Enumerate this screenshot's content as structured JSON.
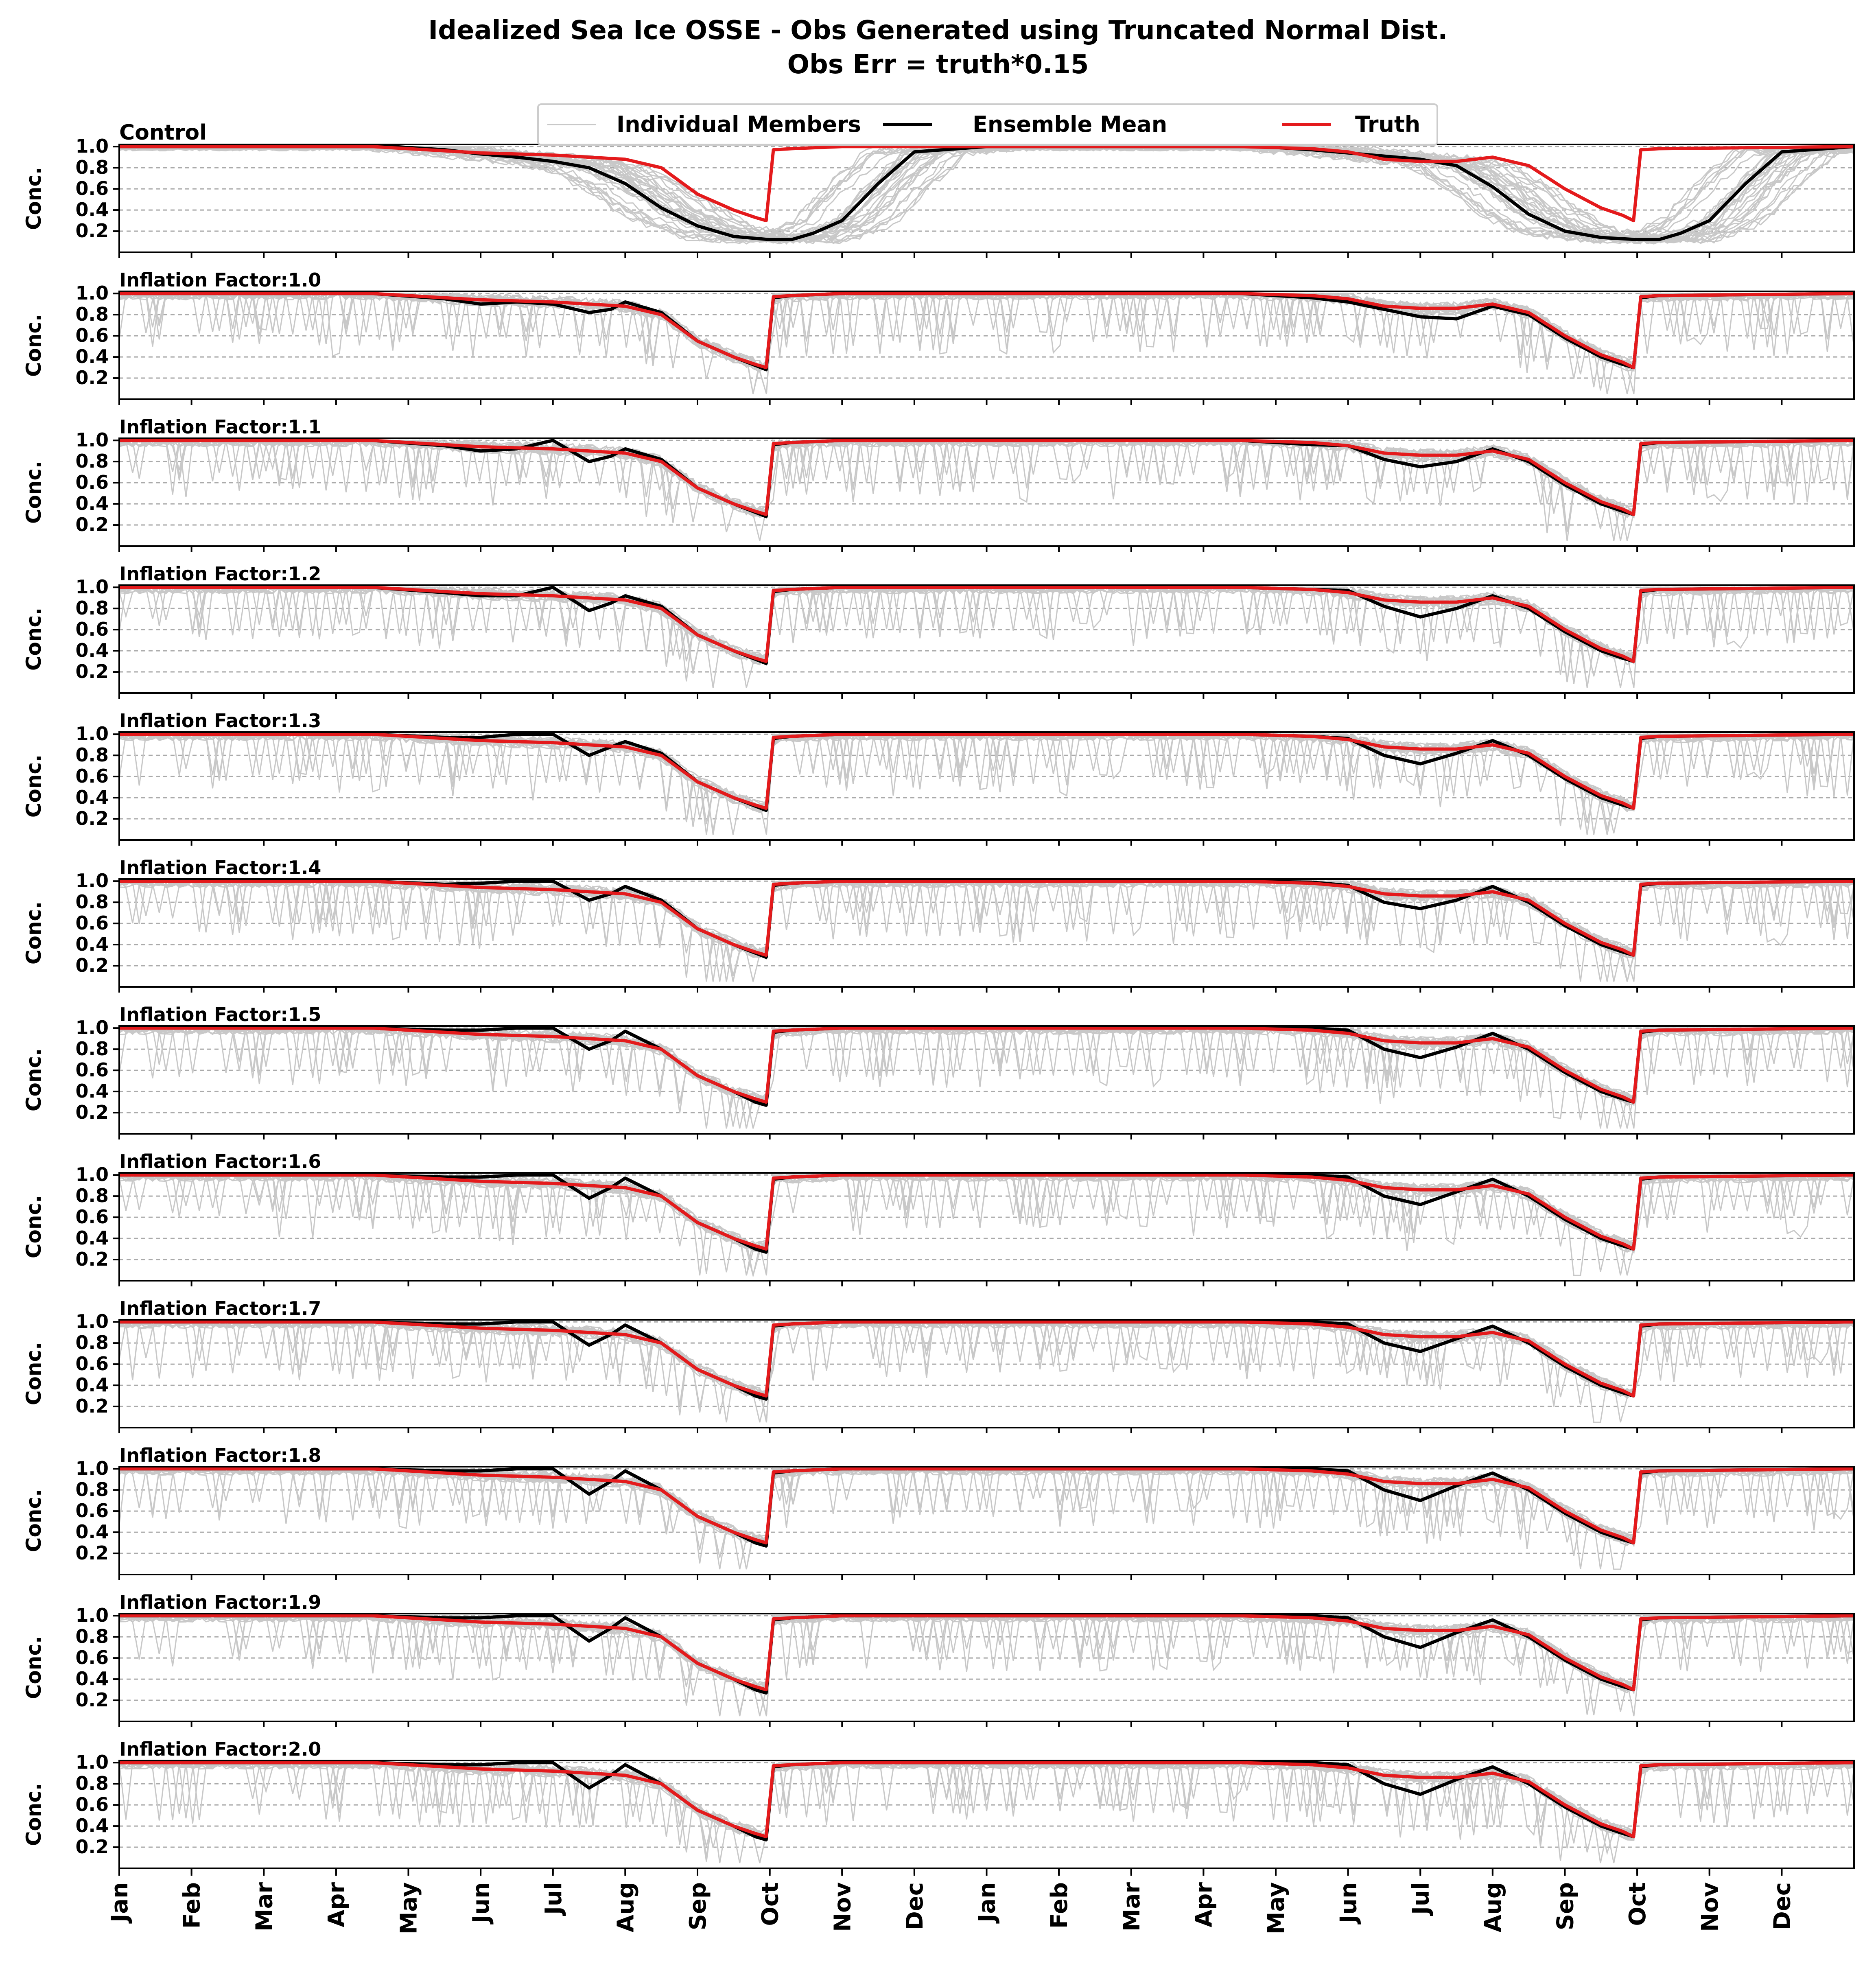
{
  "title_line1": "Idealized Sea Ice OSSE - Obs Generated using Truncated Normal Dist.",
  "title_line2": "Obs Err = truth*0.15",
  "legend": [
    {
      "label": "Individual Members",
      "color": "#c8c8c8"
    },
    {
      "label": "Ensemble Mean",
      "color": "#000000"
    },
    {
      "label": "Truth",
      "color": "#e41a1c"
    }
  ],
  "colors": {
    "members": "#c8c8c8",
    "mean": "#000000",
    "truth": "#e41a1c",
    "grid": "#aaaaaa"
  },
  "chart_data": {
    "type": "line",
    "ylabel": "Conc.",
    "ylim": [
      0,
      1.02
    ],
    "yticks": [
      0.2,
      0.4,
      0.6,
      0.8,
      1.0
    ],
    "ytick_labels": [
      "0.2",
      "0.4",
      "0.6",
      "0.8",
      "1.0"
    ],
    "grid": "horizontal dashed",
    "legend_position": "top-center",
    "x_range_months": [
      0,
      24
    ],
    "month_labels": [
      "Jan",
      "Feb",
      "Mar",
      "Apr",
      "May",
      "Jun",
      "Jul",
      "Aug",
      "Sep",
      "Oct",
      "Nov",
      "Dec",
      "Jan",
      "Feb",
      "Mar",
      "Apr",
      "May",
      "Jun",
      "Jul",
      "Aug",
      "Sep",
      "Oct",
      "Nov",
      "Dec"
    ],
    "truth": {
      "x": [
        0,
        3.5,
        4.5,
        5.0,
        5.5,
        6.0,
        6.5,
        7.0,
        7.5,
        8.0,
        8.5,
        8.8,
        8.95,
        9.05,
        9.3,
        10,
        12,
        15.5,
        16.5,
        17.0,
        17.5,
        18.0,
        18.5,
        19.0,
        19.5,
        20.0,
        20.5,
        20.8,
        20.95,
        21.05,
        21.3,
        24
      ],
      "y": [
        1.0,
        1.0,
        0.96,
        0.94,
        0.93,
        0.92,
        0.9,
        0.88,
        0.8,
        0.55,
        0.4,
        0.33,
        0.3,
        0.97,
        0.98,
        1.0,
        1.0,
        1.0,
        0.98,
        0.95,
        0.88,
        0.86,
        0.86,
        0.9,
        0.82,
        0.6,
        0.42,
        0.35,
        0.3,
        0.97,
        0.98,
        1.0
      ]
    },
    "panels": [
      {
        "label": "Control",
        "mean": {
          "x": [
            0,
            3.8,
            4.5,
            5.0,
            5.5,
            6.0,
            6.5,
            7.0,
            7.5,
            8.0,
            8.5,
            9.0,
            9.3,
            9.6,
            10.0,
            10.5,
            11.0,
            12.0,
            15.8,
            16.5,
            17.0,
            17.5,
            18.0,
            18.5,
            19.0,
            19.5,
            20.0,
            20.5,
            21.0,
            21.3,
            21.6,
            22.0,
            22.5,
            23.0,
            24.0
          ],
          "y": [
            1.0,
            1.0,
            0.97,
            0.93,
            0.9,
            0.86,
            0.8,
            0.65,
            0.42,
            0.25,
            0.15,
            0.12,
            0.12,
            0.18,
            0.3,
            0.65,
            0.95,
            1.0,
            1.0,
            0.97,
            0.94,
            0.91,
            0.88,
            0.82,
            0.62,
            0.36,
            0.2,
            0.14,
            0.12,
            0.12,
            0.18,
            0.3,
            0.65,
            0.95,
            1.0
          ]
        }
      },
      {
        "label": "Inflation Factor:1.0",
        "mean": {
          "x": [
            0,
            3.5,
            4.5,
            5.0,
            5.5,
            6.0,
            6.5,
            6.8,
            7.0,
            7.5,
            8.0,
            8.5,
            8.8,
            8.95,
            9.05,
            9.3,
            10,
            12,
            15.5,
            16.5,
            17.0,
            17.5,
            18.0,
            18.5,
            19.0,
            19.5,
            20.0,
            20.5,
            20.8,
            20.95,
            21.05,
            21.3,
            24
          ],
          "y": [
            1.0,
            1.0,
            0.95,
            0.9,
            0.92,
            0.9,
            0.82,
            0.85,
            0.92,
            0.82,
            0.55,
            0.4,
            0.32,
            0.28,
            0.96,
            0.98,
            1.0,
            1.0,
            1.0,
            0.96,
            0.92,
            0.85,
            0.78,
            0.76,
            0.88,
            0.8,
            0.58,
            0.4,
            0.33,
            0.3,
            0.96,
            0.98,
            1.0
          ]
        }
      },
      {
        "label": "Inflation Factor:1.1",
        "mean": {
          "x": [
            0,
            3.5,
            4.5,
            5.0,
            5.5,
            6.0,
            6.5,
            6.8,
            7.0,
            7.5,
            8.0,
            8.5,
            8.8,
            8.95,
            9.05,
            9.3,
            10,
            12,
            15.5,
            16.5,
            17.0,
            17.5,
            18.0,
            18.5,
            19.0,
            19.5,
            20.0,
            20.5,
            20.8,
            20.95,
            21.05,
            21.3,
            24
          ],
          "y": [
            1.0,
            1.0,
            0.95,
            0.9,
            0.92,
            1.0,
            0.8,
            0.85,
            0.92,
            0.82,
            0.55,
            0.4,
            0.32,
            0.28,
            0.96,
            0.98,
            1.0,
            1.0,
            1.0,
            0.96,
            0.95,
            0.82,
            0.75,
            0.8,
            0.92,
            0.8,
            0.58,
            0.4,
            0.33,
            0.3,
            0.96,
            0.98,
            1.0
          ]
        }
      },
      {
        "label": "Inflation Factor:1.2",
        "mean": {
          "x": [
            0,
            3.5,
            4.5,
            5.0,
            5.5,
            6.0,
            6.5,
            6.8,
            7.0,
            7.5,
            8.0,
            8.5,
            8.8,
            8.95,
            9.05,
            9.3,
            10,
            12,
            15.5,
            16.5,
            17.0,
            17.5,
            18.0,
            18.5,
            19.0,
            19.5,
            20.0,
            20.5,
            20.8,
            20.95,
            21.05,
            21.3,
            24
          ],
          "y": [
            1.0,
            1.0,
            0.95,
            0.92,
            0.92,
            1.0,
            0.78,
            0.85,
            0.92,
            0.82,
            0.55,
            0.4,
            0.32,
            0.28,
            0.96,
            0.98,
            1.0,
            1.0,
            1.0,
            0.98,
            0.97,
            0.82,
            0.72,
            0.8,
            0.92,
            0.8,
            0.58,
            0.4,
            0.33,
            0.3,
            0.96,
            0.98,
            1.0
          ]
        }
      },
      {
        "label": "Inflation Factor:1.3",
        "mean": {
          "x": [
            0,
            3.5,
            4.5,
            5.0,
            5.5,
            6.0,
            6.5,
            6.8,
            7.0,
            7.5,
            8.0,
            8.5,
            8.8,
            8.95,
            9.05,
            9.3,
            10,
            12,
            15.5,
            16.5,
            17.0,
            17.5,
            18.0,
            18.5,
            19.0,
            19.5,
            20.0,
            20.5,
            20.8,
            20.95,
            21.05,
            21.3,
            24
          ],
          "y": [
            1.0,
            1.0,
            0.97,
            0.97,
            1.0,
            1.0,
            0.8,
            0.88,
            0.93,
            0.82,
            0.55,
            0.4,
            0.32,
            0.28,
            0.96,
            0.98,
            1.0,
            1.0,
            1.0,
            0.98,
            0.96,
            0.8,
            0.72,
            0.82,
            0.94,
            0.8,
            0.58,
            0.4,
            0.33,
            0.3,
            0.96,
            0.98,
            1.0
          ]
        }
      },
      {
        "label": "Inflation Factor:1.4",
        "mean": {
          "x": [
            0,
            3.5,
            4.5,
            5.0,
            5.5,
            6.0,
            6.5,
            6.8,
            7.0,
            7.5,
            8.0,
            8.5,
            8.8,
            8.95,
            9.05,
            9.3,
            10,
            12,
            15.5,
            16.5,
            17.0,
            17.5,
            18.0,
            18.5,
            19.0,
            19.5,
            20.0,
            20.5,
            20.8,
            20.95,
            21.05,
            21.3,
            24
          ],
          "y": [
            1.0,
            1.0,
            0.97,
            0.98,
            1.0,
            1.0,
            0.82,
            0.88,
            0.95,
            0.82,
            0.55,
            0.4,
            0.32,
            0.28,
            0.96,
            0.98,
            1.0,
            1.0,
            1.0,
            0.99,
            0.96,
            0.8,
            0.74,
            0.82,
            0.95,
            0.8,
            0.58,
            0.4,
            0.33,
            0.3,
            0.96,
            0.98,
            1.0
          ]
        }
      },
      {
        "label": "Inflation Factor:1.5",
        "mean": {
          "x": [
            0,
            3.5,
            4.5,
            5.0,
            5.5,
            6.0,
            6.5,
            6.8,
            7.0,
            7.5,
            8.0,
            8.5,
            8.8,
            8.95,
            9.05,
            9.3,
            10,
            12,
            15.5,
            16.5,
            17.0,
            17.5,
            18.0,
            18.5,
            19.0,
            19.5,
            20.0,
            20.5,
            20.8,
            20.95,
            21.05,
            21.3,
            24
          ],
          "y": [
            1.0,
            1.0,
            0.98,
            0.98,
            1.0,
            1.0,
            0.8,
            0.88,
            0.97,
            0.8,
            0.55,
            0.4,
            0.3,
            0.27,
            0.96,
            0.98,
            1.0,
            1.0,
            1.0,
            1.0,
            0.98,
            0.8,
            0.72,
            0.82,
            0.95,
            0.8,
            0.58,
            0.4,
            0.33,
            0.3,
            0.96,
            0.98,
            1.0
          ]
        }
      },
      {
        "label": "Inflation Factor:1.6",
        "mean": {
          "x": [
            0,
            3.5,
            4.5,
            5.0,
            5.5,
            6.0,
            6.5,
            6.8,
            7.0,
            7.5,
            8.0,
            8.5,
            8.8,
            8.95,
            9.05,
            9.3,
            10,
            12,
            15.5,
            16.5,
            17.0,
            17.5,
            18.0,
            18.5,
            19.0,
            19.5,
            20.0,
            20.5,
            20.8,
            20.95,
            21.05,
            21.3,
            24
          ],
          "y": [
            1.0,
            1.0,
            0.98,
            0.98,
            1.0,
            1.0,
            0.78,
            0.88,
            0.97,
            0.8,
            0.55,
            0.4,
            0.3,
            0.27,
            0.96,
            0.98,
            1.0,
            1.0,
            1.0,
            1.0,
            0.98,
            0.8,
            0.72,
            0.84,
            0.96,
            0.8,
            0.58,
            0.4,
            0.33,
            0.3,
            0.96,
            0.98,
            1.0
          ]
        }
      },
      {
        "label": "Inflation Factor:1.7",
        "mean": {
          "x": [
            0,
            3.5,
            4.5,
            5.0,
            5.5,
            6.0,
            6.5,
            6.8,
            7.0,
            7.5,
            8.0,
            8.5,
            8.8,
            8.95,
            9.05,
            9.3,
            10,
            12,
            15.5,
            16.5,
            17.0,
            17.5,
            18.0,
            18.5,
            19.0,
            19.5,
            20.0,
            20.5,
            20.8,
            20.95,
            21.05,
            21.3,
            24
          ],
          "y": [
            1.0,
            1.0,
            0.98,
            0.98,
            1.0,
            1.0,
            0.78,
            0.88,
            0.97,
            0.8,
            0.55,
            0.4,
            0.3,
            0.27,
            0.96,
            0.98,
            1.0,
            1.0,
            1.0,
            1.0,
            0.98,
            0.8,
            0.72,
            0.84,
            0.96,
            0.8,
            0.58,
            0.4,
            0.33,
            0.3,
            0.96,
            0.98,
            1.0
          ]
        }
      },
      {
        "label": "Inflation Factor:1.8",
        "mean": {
          "x": [
            0,
            3.5,
            4.5,
            5.0,
            5.5,
            6.0,
            6.5,
            6.8,
            7.0,
            7.5,
            8.0,
            8.5,
            8.8,
            8.95,
            9.05,
            9.3,
            10,
            12,
            15.5,
            16.5,
            17.0,
            17.5,
            18.0,
            18.5,
            19.0,
            19.5,
            20.0,
            20.5,
            20.8,
            20.95,
            21.05,
            21.3,
            24
          ],
          "y": [
            1.0,
            1.0,
            0.98,
            0.98,
            1.0,
            1.0,
            0.76,
            0.88,
            0.98,
            0.8,
            0.55,
            0.4,
            0.3,
            0.27,
            0.96,
            0.98,
            1.0,
            1.0,
            1.0,
            1.0,
            0.98,
            0.8,
            0.7,
            0.84,
            0.96,
            0.8,
            0.58,
            0.4,
            0.33,
            0.3,
            0.96,
            0.98,
            1.0
          ]
        }
      },
      {
        "label": "Inflation Factor:1.9",
        "mean": {
          "x": [
            0,
            3.5,
            4.5,
            5.0,
            5.5,
            6.0,
            6.5,
            6.8,
            7.0,
            7.5,
            8.0,
            8.5,
            8.8,
            8.95,
            9.05,
            9.3,
            10,
            12,
            15.5,
            16.5,
            17.0,
            17.5,
            18.0,
            18.5,
            19.0,
            19.5,
            20.0,
            20.5,
            20.8,
            20.95,
            21.05,
            21.3,
            24
          ],
          "y": [
            1.0,
            1.0,
            0.98,
            0.98,
            1.0,
            1.0,
            0.76,
            0.88,
            0.98,
            0.8,
            0.55,
            0.4,
            0.3,
            0.27,
            0.96,
            0.98,
            1.0,
            1.0,
            1.0,
            1.0,
            0.98,
            0.8,
            0.7,
            0.84,
            0.96,
            0.8,
            0.58,
            0.4,
            0.33,
            0.3,
            0.96,
            0.98,
            1.0
          ]
        }
      },
      {
        "label": "Inflation Factor:2.0",
        "mean": {
          "x": [
            0,
            3.5,
            4.5,
            5.0,
            5.5,
            6.0,
            6.5,
            6.8,
            7.0,
            7.5,
            8.0,
            8.5,
            8.8,
            8.95,
            9.05,
            9.3,
            10,
            12,
            15.5,
            16.5,
            17.0,
            17.5,
            18.0,
            18.5,
            19.0,
            19.5,
            20.0,
            20.5,
            20.8,
            20.95,
            21.05,
            21.3,
            24
          ],
          "y": [
            1.0,
            1.0,
            0.98,
            0.98,
            1.0,
            1.0,
            0.76,
            0.88,
            0.98,
            0.8,
            0.55,
            0.4,
            0.3,
            0.27,
            0.96,
            0.98,
            1.0,
            1.0,
            1.0,
            1.0,
            0.98,
            0.8,
            0.7,
            0.84,
            0.96,
            0.8,
            0.58,
            0.4,
            0.33,
            0.3,
            0.96,
            0.98,
            1.0
          ]
        }
      }
    ]
  }
}
